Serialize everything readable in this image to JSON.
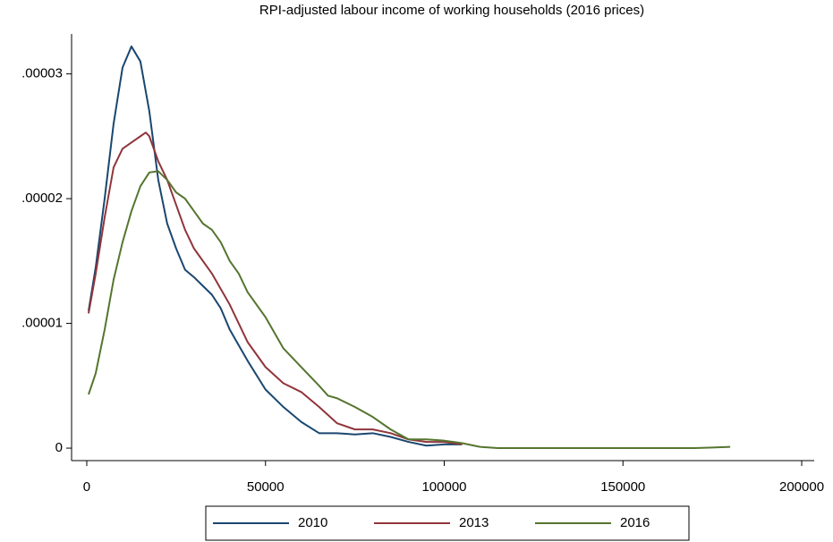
{
  "chart_data": {
    "type": "line",
    "title": "RPI-adjusted labour income of working households (2016 prices)",
    "xlim": [
      -4250,
      203500
    ],
    "ylim": [
      -1e-06,
      3.32e-05
    ],
    "xticks": [
      0,
      50000,
      100000,
      150000,
      200000
    ],
    "yticks": [
      0,
      {
        "value": 1e-05,
        "label": ".00001"
      },
      {
        "value": 2e-05,
        "label": ".00002"
      },
      {
        "value": 3e-05,
        "label": ".00003"
      }
    ],
    "grid": false,
    "legend": "bottom",
    "series": [
      {
        "name": "2010",
        "color": "#1a476f",
        "x": [
          500,
          2500,
          5000,
          7500,
          10000,
          12500,
          15000,
          17500,
          20000,
          22500,
          25000,
          27500,
          30000,
          32500,
          35000,
          37500,
          40000,
          45000,
          50000,
          55000,
          60000,
          65000,
          70000,
          75000,
          80000,
          85000,
          90000,
          95000,
          100000,
          105000
        ],
        "values": [
          1.1e-05,
          1.45e-05,
          2e-05,
          2.6e-05,
          3.05e-05,
          3.22e-05,
          3.1e-05,
          2.7e-05,
          2.15e-05,
          1.8e-05,
          1.6e-05,
          1.43e-05,
          1.37e-05,
          1.3e-05,
          1.23e-05,
          1.12e-05,
          9.5e-06,
          7e-06,
          4.7e-06,
          3.3e-06,
          2.1e-06,
          1.2e-06,
          1.2e-06,
          1.1e-06,
          1.2e-06,
          9e-07,
          5e-07,
          2e-07,
          3e-07,
          3e-07
        ]
      },
      {
        "name": "2013",
        "color": "#90353b",
        "x": [
          500,
          2500,
          5000,
          7500,
          10000,
          12500,
          15000,
          16500,
          17500,
          20000,
          22500,
          25000,
          27500,
          30000,
          35000,
          40000,
          45000,
          50000,
          55000,
          60000,
          65000,
          70000,
          75000,
          80000,
          85000,
          90000,
          95000,
          100000,
          105000
        ],
        "values": [
          1.08e-05,
          1.4e-05,
          1.85e-05,
          2.25e-05,
          2.4e-05,
          2.45e-05,
          2.5e-05,
          2.53e-05,
          2.5e-05,
          2.3e-05,
          2.15e-05,
          1.95e-05,
          1.75e-05,
          1.6e-05,
          1.4e-05,
          1.15e-05,
          8.5e-06,
          6.5e-06,
          5.2e-06,
          4.5e-06,
          3.3e-06,
          2e-06,
          1.5e-06,
          1.5e-06,
          1.2e-06,
          7e-07,
          5e-07,
          5e-07,
          3e-07
        ]
      },
      {
        "name": "2016",
        "color": "#55752f",
        "x": [
          500,
          2500,
          5000,
          7500,
          10000,
          12500,
          15000,
          17500,
          20000,
          22500,
          25000,
          27500,
          30000,
          32500,
          35000,
          37500,
          40000,
          42500,
          45000,
          50000,
          55000,
          60000,
          65000,
          67500,
          70000,
          75000,
          80000,
          85000,
          90000,
          95000,
          100000,
          105000,
          110000,
          115000,
          130000,
          150000,
          170000,
          175000,
          180000
        ],
        "values": [
          4.3e-06,
          6e-06,
          9.5e-06,
          1.35e-05,
          1.65e-05,
          1.9e-05,
          2.1e-05,
          2.21e-05,
          2.22e-05,
          2.15e-05,
          2.05e-05,
          2e-05,
          1.9e-05,
          1.8e-05,
          1.75e-05,
          1.65e-05,
          1.5e-05,
          1.4e-05,
          1.25e-05,
          1.05e-05,
          8e-06,
          6.5e-06,
          5e-06,
          4.2e-06,
          4e-06,
          3.3e-06,
          2.5e-06,
          1.5e-06,
          7e-07,
          7e-07,
          6e-07,
          4e-07,
          1e-07,
          0,
          0,
          0,
          0,
          5e-08,
          1e-07
        ]
      }
    ]
  }
}
